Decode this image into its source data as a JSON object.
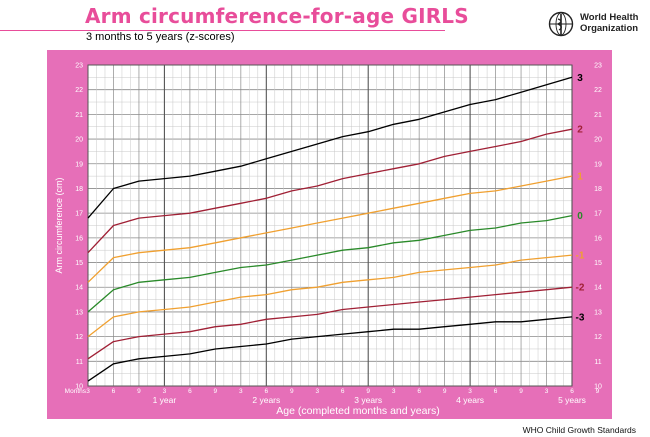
{
  "title": "Arm circumference-for-age  GIRLS",
  "subtitle": "3 months to 5 years (z-scores)",
  "org_name_line1": "World Health",
  "org_name_line2": "Organization",
  "footer": "WHO Child Growth Standards",
  "chart_data": {
    "type": "line",
    "title": "Arm circumference-for-age  GIRLS",
    "subtitle": "3 months to 5 years (z-scores)",
    "xlabel": "Age (completed months and years)",
    "ylabel": "Arm circumference (cm)",
    "x_prefix_label": "Months",
    "xlim": [
      3,
      60
    ],
    "ylim": [
      10,
      23
    ],
    "grid": true,
    "month_ticks": [
      3,
      6,
      9,
      3,
      6,
      9,
      3,
      6,
      9,
      3,
      6,
      9,
      3,
      6,
      9,
      3,
      6,
      9,
      3,
      6,
      9
    ],
    "year_labels": [
      "1 year",
      "2 years",
      "3 years",
      "4 years",
      "5 years"
    ],
    "y_ticks": [
      10,
      11,
      12,
      13,
      14,
      15,
      16,
      17,
      18,
      19,
      20,
      21,
      22,
      23
    ],
    "x_months": [
      3,
      6,
      9,
      12,
      15,
      18,
      21,
      24,
      27,
      30,
      33,
      36,
      39,
      42,
      45,
      48,
      51,
      54,
      57,
      60
    ],
    "series": [
      {
        "name": "3",
        "color": "#000000",
        "values": [
          16.8,
          18.0,
          18.3,
          18.4,
          18.5,
          18.7,
          18.9,
          19.2,
          19.5,
          19.8,
          20.1,
          20.3,
          20.6,
          20.8,
          21.1,
          21.4,
          21.6,
          21.9,
          22.2,
          22.5
        ]
      },
      {
        "name": "2",
        "color": "#a02035",
        "values": [
          15.4,
          16.5,
          16.8,
          16.9,
          17.0,
          17.2,
          17.4,
          17.6,
          17.9,
          18.1,
          18.4,
          18.6,
          18.8,
          19.0,
          19.3,
          19.5,
          19.7,
          19.9,
          20.2,
          20.4
        ]
      },
      {
        "name": "1",
        "color": "#f0a030",
        "values": [
          14.2,
          15.2,
          15.4,
          15.5,
          15.6,
          15.8,
          16.0,
          16.2,
          16.4,
          16.6,
          16.8,
          17.0,
          17.2,
          17.4,
          17.6,
          17.8,
          17.9,
          18.1,
          18.3,
          18.5
        ]
      },
      {
        "name": "0",
        "color": "#2a8a2a",
        "values": [
          13.0,
          13.9,
          14.2,
          14.3,
          14.4,
          14.6,
          14.8,
          14.9,
          15.1,
          15.3,
          15.5,
          15.6,
          15.8,
          15.9,
          16.1,
          16.3,
          16.4,
          16.6,
          16.7,
          16.9
        ]
      },
      {
        "name": "-1",
        "color": "#f0a030",
        "values": [
          12.0,
          12.8,
          13.0,
          13.1,
          13.2,
          13.4,
          13.6,
          13.7,
          13.9,
          14.0,
          14.2,
          14.3,
          14.4,
          14.6,
          14.7,
          14.8,
          14.9,
          15.1,
          15.2,
          15.3
        ]
      },
      {
        "name": "-2",
        "color": "#a02035",
        "values": [
          11.1,
          11.8,
          12.0,
          12.1,
          12.2,
          12.4,
          12.5,
          12.7,
          12.8,
          12.9,
          13.1,
          13.2,
          13.3,
          13.4,
          13.5,
          13.6,
          13.7,
          13.8,
          13.9,
          14.0
        ]
      },
      {
        "name": "-3",
        "color": "#000000",
        "values": [
          10.2,
          10.9,
          11.1,
          11.2,
          11.3,
          11.5,
          11.6,
          11.7,
          11.9,
          12.0,
          12.1,
          12.2,
          12.3,
          12.3,
          12.4,
          12.5,
          12.6,
          12.6,
          12.7,
          12.8
        ]
      }
    ]
  }
}
